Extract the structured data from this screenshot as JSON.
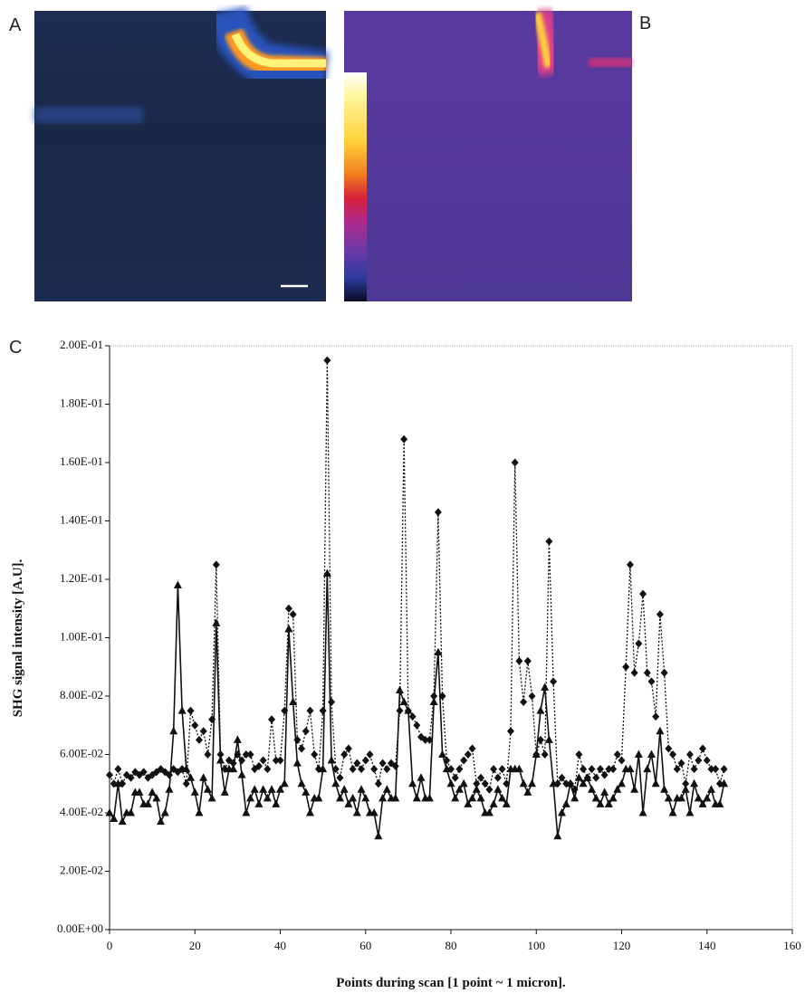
{
  "panels": {
    "a_label": "A",
    "b_label": "B",
    "c_label": "C"
  },
  "chart_data": {
    "type": "line",
    "x_label": "Points during scan [1 point ~ 1 micron].",
    "y_label": "SHG signal intensity [A.U].",
    "xlim": [
      0,
      160
    ],
    "xticks": [
      0,
      20,
      40,
      60,
      80,
      100,
      120,
      140,
      160
    ],
    "ylim": [
      0,
      0.2
    ],
    "yticks": [
      {
        "value": 0,
        "label": "0.00E+00"
      },
      {
        "value": 0.02,
        "label": "2.00E-02"
      },
      {
        "value": 0.04,
        "label": "4.00E-02"
      },
      {
        "value": 0.06,
        "label": "6.00E-02"
      },
      {
        "value": 0.08,
        "label": "8.00E-02"
      },
      {
        "value": 0.1,
        "label": "1.00E-01"
      },
      {
        "value": 0.12,
        "label": "1.20E-01"
      },
      {
        "value": 0.14,
        "label": "1.40E-01"
      },
      {
        "value": 0.16,
        "label": "1.60E-01"
      },
      {
        "value": 0.18,
        "label": "1.80E-01"
      },
      {
        "value": 0.2,
        "label": "2.00E-01"
      }
    ],
    "grid": false,
    "x": [
      0,
      1,
      2,
      3,
      4,
      5,
      6,
      7,
      8,
      9,
      10,
      11,
      12,
      13,
      14,
      15,
      16,
      17,
      18,
      19,
      20,
      21,
      22,
      23,
      24,
      25,
      26,
      27,
      28,
      29,
      30,
      31,
      32,
      33,
      34,
      35,
      36,
      37,
      38,
      39,
      40,
      41,
      42,
      43,
      44,
      45,
      46,
      47,
      48,
      49,
      50,
      51,
      52,
      53,
      54,
      55,
      56,
      57,
      58,
      59,
      60,
      61,
      62,
      63,
      64,
      65,
      66,
      67,
      68,
      69,
      70,
      71,
      72,
      73,
      74,
      75,
      76,
      77,
      78,
      79,
      80,
      81,
      82,
      83,
      84,
      85,
      86,
      87,
      88,
      89,
      90,
      91,
      92,
      93,
      94,
      95,
      96,
      97,
      98,
      99,
      100,
      101,
      102,
      103,
      104,
      105,
      106,
      107,
      108,
      109,
      110,
      111,
      112,
      113,
      114,
      115,
      116,
      117,
      118,
      119,
      120,
      121,
      122,
      123,
      124,
      125,
      126,
      127,
      128,
      129,
      130,
      131,
      132,
      133,
      134,
      135,
      136,
      137,
      138,
      139,
      140,
      141,
      142,
      143,
      144
    ],
    "series": [
      {
        "color": "#111111",
        "marker": "diamond",
        "line_style": "dotted",
        "values": [
          0.053,
          0.05,
          0.055,
          0.05,
          0.053,
          0.052,
          0.054,
          0.053,
          0.054,
          0.052,
          0.053,
          0.054,
          0.055,
          0.054,
          0.053,
          0.055,
          0.054,
          0.055,
          0.05,
          0.075,
          0.07,
          0.065,
          0.068,
          0.06,
          0.072,
          0.125,
          0.06,
          0.055,
          0.058,
          0.057,
          0.06,
          0.058,
          0.06,
          0.06,
          0.055,
          0.056,
          0.058,
          0.055,
          0.072,
          0.058,
          0.058,
          0.075,
          0.11,
          0.108,
          0.065,
          0.062,
          0.068,
          0.075,
          0.06,
          0.055,
          0.075,
          0.195,
          0.078,
          0.055,
          0.052,
          0.06,
          0.062,
          0.055,
          0.057,
          0.055,
          0.058,
          0.06,
          0.055,
          0.05,
          0.057,
          0.055,
          0.057,
          0.056,
          0.075,
          0.168,
          0.075,
          0.073,
          0.07,
          0.066,
          0.065,
          0.065,
          0.08,
          0.143,
          0.08,
          0.058,
          0.055,
          0.052,
          0.055,
          0.058,
          0.06,
          0.062,
          0.05,
          0.052,
          0.05,
          0.048,
          0.055,
          0.052,
          0.055,
          0.05,
          0.068,
          0.16,
          0.092,
          0.078,
          0.092,
          0.08,
          0.06,
          0.065,
          0.06,
          0.133,
          0.085,
          0.05,
          0.052,
          0.05,
          0.05,
          0.048,
          0.06,
          0.055,
          0.052,
          0.055,
          0.052,
          0.055,
          0.053,
          0.055,
          0.055,
          0.06,
          0.058,
          0.09,
          0.125,
          0.088,
          0.098,
          0.115,
          0.088,
          0.085,
          0.073,
          0.108,
          0.088,
          0.062,
          0.06,
          0.055,
          0.057,
          0.05,
          0.06,
          0.055,
          0.058,
          0.062,
          0.058,
          0.055,
          0.055,
          0.05,
          0.055
        ]
      },
      {
        "color": "#111111",
        "marker": "triangle",
        "line_style": "solid",
        "values": [
          0.04,
          0.038,
          0.05,
          0.037,
          0.04,
          0.04,
          0.047,
          0.047,
          0.043,
          0.043,
          0.047,
          0.045,
          0.037,
          0.04,
          0.048,
          0.068,
          0.118,
          0.075,
          0.055,
          0.052,
          0.047,
          0.04,
          0.052,
          0.048,
          0.045,
          0.105,
          0.058,
          0.047,
          0.055,
          0.055,
          0.065,
          0.053,
          0.04,
          0.045,
          0.048,
          0.043,
          0.048,
          0.045,
          0.048,
          0.043,
          0.048,
          0.05,
          0.103,
          0.078,
          0.057,
          0.05,
          0.047,
          0.04,
          0.045,
          0.045,
          0.055,
          0.122,
          0.058,
          0.05,
          0.045,
          0.048,
          0.043,
          0.045,
          0.04,
          0.048,
          0.045,
          0.04,
          0.04,
          0.032,
          0.045,
          0.048,
          0.045,
          0.045,
          0.082,
          0.078,
          0.075,
          0.05,
          0.045,
          0.052,
          0.045,
          0.045,
          0.078,
          0.095,
          0.06,
          0.055,
          0.05,
          0.045,
          0.048,
          0.05,
          0.043,
          0.045,
          0.048,
          0.045,
          0.04,
          0.04,
          0.043,
          0.048,
          0.045,
          0.043,
          0.055,
          0.055,
          0.055,
          0.05,
          0.047,
          0.05,
          0.06,
          0.075,
          0.083,
          0.065,
          0.05,
          0.032,
          0.04,
          0.043,
          0.05,
          0.045,
          0.052,
          0.05,
          0.052,
          0.048,
          0.045,
          0.043,
          0.047,
          0.043,
          0.045,
          0.048,
          0.05,
          0.055,
          0.055,
          0.048,
          0.06,
          0.04,
          0.055,
          0.06,
          0.05,
          0.068,
          0.048,
          0.045,
          0.04,
          0.045,
          0.045,
          0.048,
          0.04,
          0.05,
          0.045,
          0.043,
          0.045,
          0.048,
          0.043,
          0.043,
          0.05
        ]
      }
    ]
  }
}
